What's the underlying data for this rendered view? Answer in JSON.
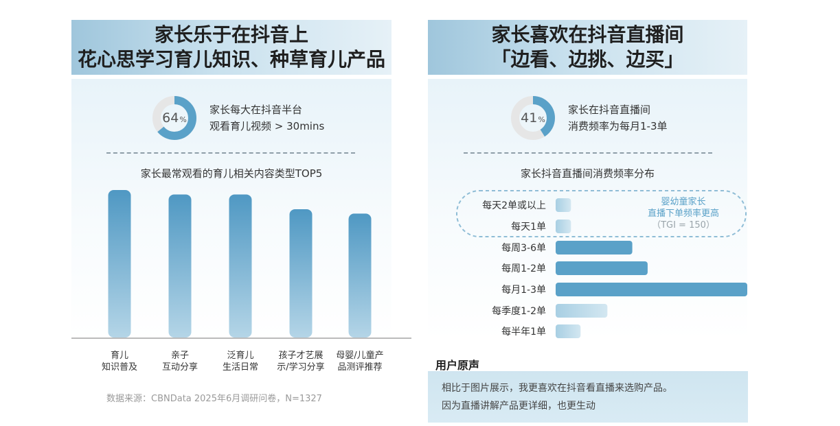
{
  "left": {
    "title_line1": "家长乐于在抖音上",
    "title_line2": "花心思学习育儿知识、种草育儿产品",
    "donut_percent": "64",
    "donut_unit": "%",
    "donut_value": 64,
    "stat_line1": "家长每大在抖音半台",
    "stat_line2": "观看育儿视频 > 30mins",
    "chart_title": "家长最常观看的育儿相关内容类型TOP5",
    "source": "数据来源：CBNData 2025年6月调研问卷，N=1327"
  },
  "right": {
    "title_line1": "家长喜欢在抖音直播间",
    "title_line2": "「边看、边挑、边买」",
    "donut_percent": "41",
    "donut_unit": "%",
    "donut_value": 41,
    "stat_line1": "家长在抖音直播间",
    "stat_line2": "消费频率为每月1-3单",
    "chart_title": "家长抖音直播间消费频率分布",
    "callout_line1": "婴幼童家长",
    "callout_line2": "直播下单频率更高",
    "callout_line3": "（TGI = 150）",
    "voice_header": "用户原声",
    "voice_line1": "相比于图片展示，我更喜欢在抖音看直播来选购产品。",
    "voice_line2": "因为直播讲解产品更详细，也更生动"
  },
  "colors": {
    "bar": "#5aa1c8",
    "bar_light": "#b5d6e8",
    "donut_track": "#e6e6e6"
  },
  "chart_data": [
    {
      "type": "bar",
      "title": "家长最常观看的育儿相关内容类型TOP5",
      "categories": [
        "育儿\n知识普及",
        "亲子\n互动分享",
        "泛育儿\n生活日常",
        "孩子才艺展\n示/学习分享",
        "母婴/儿童产\n品测评推荐"
      ],
      "values": [
        100,
        97,
        97,
        87,
        84
      ]
    },
    {
      "type": "bar",
      "orientation": "horizontal",
      "title": "家长抖音直播间消费频率分布",
      "categories": [
        "每天2单或以上",
        "每天1单",
        "每周3-6单",
        "每周1-2单",
        "每月1-3单",
        "每季度1-2单",
        "每半年1单"
      ],
      "values": [
        8,
        8,
        40,
        48,
        100,
        27,
        13
      ]
    }
  ]
}
